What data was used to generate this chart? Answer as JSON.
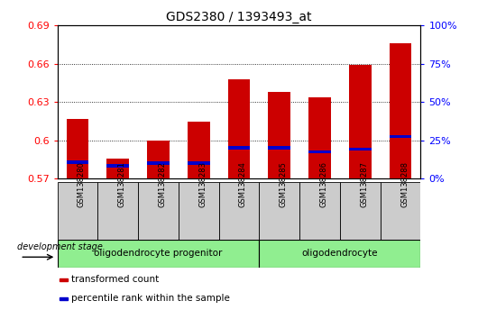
{
  "title": "GDS2380 / 1393493_at",
  "samples": [
    "GSM138280",
    "GSM138281",
    "GSM138282",
    "GSM138283",
    "GSM138284",
    "GSM138285",
    "GSM138286",
    "GSM138287",
    "GSM138288"
  ],
  "transformed_count": [
    0.617,
    0.586,
    0.6,
    0.615,
    0.648,
    0.638,
    0.634,
    0.659,
    0.676
  ],
  "percentile_rank": [
    0.583,
    0.58,
    0.582,
    0.582,
    0.594,
    0.594,
    0.591,
    0.593,
    0.603
  ],
  "ylim": [
    0.57,
    0.69
  ],
  "yticks_left": [
    0.57,
    0.6,
    0.63,
    0.66,
    0.69
  ],
  "yticks_right": [
    0,
    25,
    50,
    75,
    100
  ],
  "bar_color": "#cc0000",
  "percentile_color": "#0000cc",
  "bar_width": 0.55,
  "group1_label": "oligodendrocyte progenitor",
  "group1_count": 5,
  "group2_label": "oligodendrocyte",
  "group2_count": 4,
  "group_color": "#90ee90",
  "dev_stage_label": "development stage",
  "legend_items": [
    {
      "label": "transformed count",
      "color": "#cc0000"
    },
    {
      "label": "percentile rank within the sample",
      "color": "#0000cc"
    }
  ]
}
